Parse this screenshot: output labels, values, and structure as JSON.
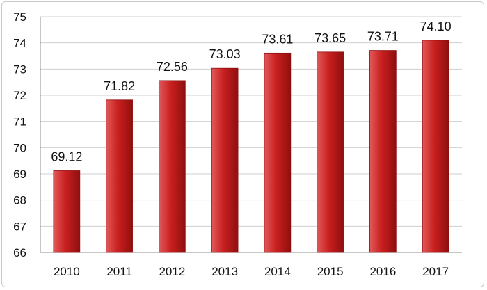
{
  "chart_data": {
    "type": "bar",
    "title": "",
    "xlabel": "",
    "ylabel": "",
    "categories": [
      "2010",
      "2011",
      "2012",
      "2013",
      "2014",
      "2015",
      "2016",
      "2017"
    ],
    "values": [
      69.12,
      71.82,
      72.56,
      73.03,
      73.61,
      73.65,
      73.71,
      74.1
    ],
    "data_labels": [
      "69.12",
      "71.82",
      "72.56",
      "73.03",
      "73.61",
      "73.65",
      "73.71",
      "74.10"
    ],
    "ylim": [
      66,
      75
    ],
    "yticks": [
      "66",
      "67",
      "68",
      "69",
      "70",
      "71",
      "72",
      "73",
      "74",
      "75"
    ],
    "grid": "horizontal",
    "legend": "none",
    "colors": {
      "bar_light": "#e05a5a",
      "bar_main": "#c91f1f",
      "bar_dark": "#8f0f0f",
      "grid": "#cfcfcf",
      "axis": "#8c8c8c"
    }
  }
}
